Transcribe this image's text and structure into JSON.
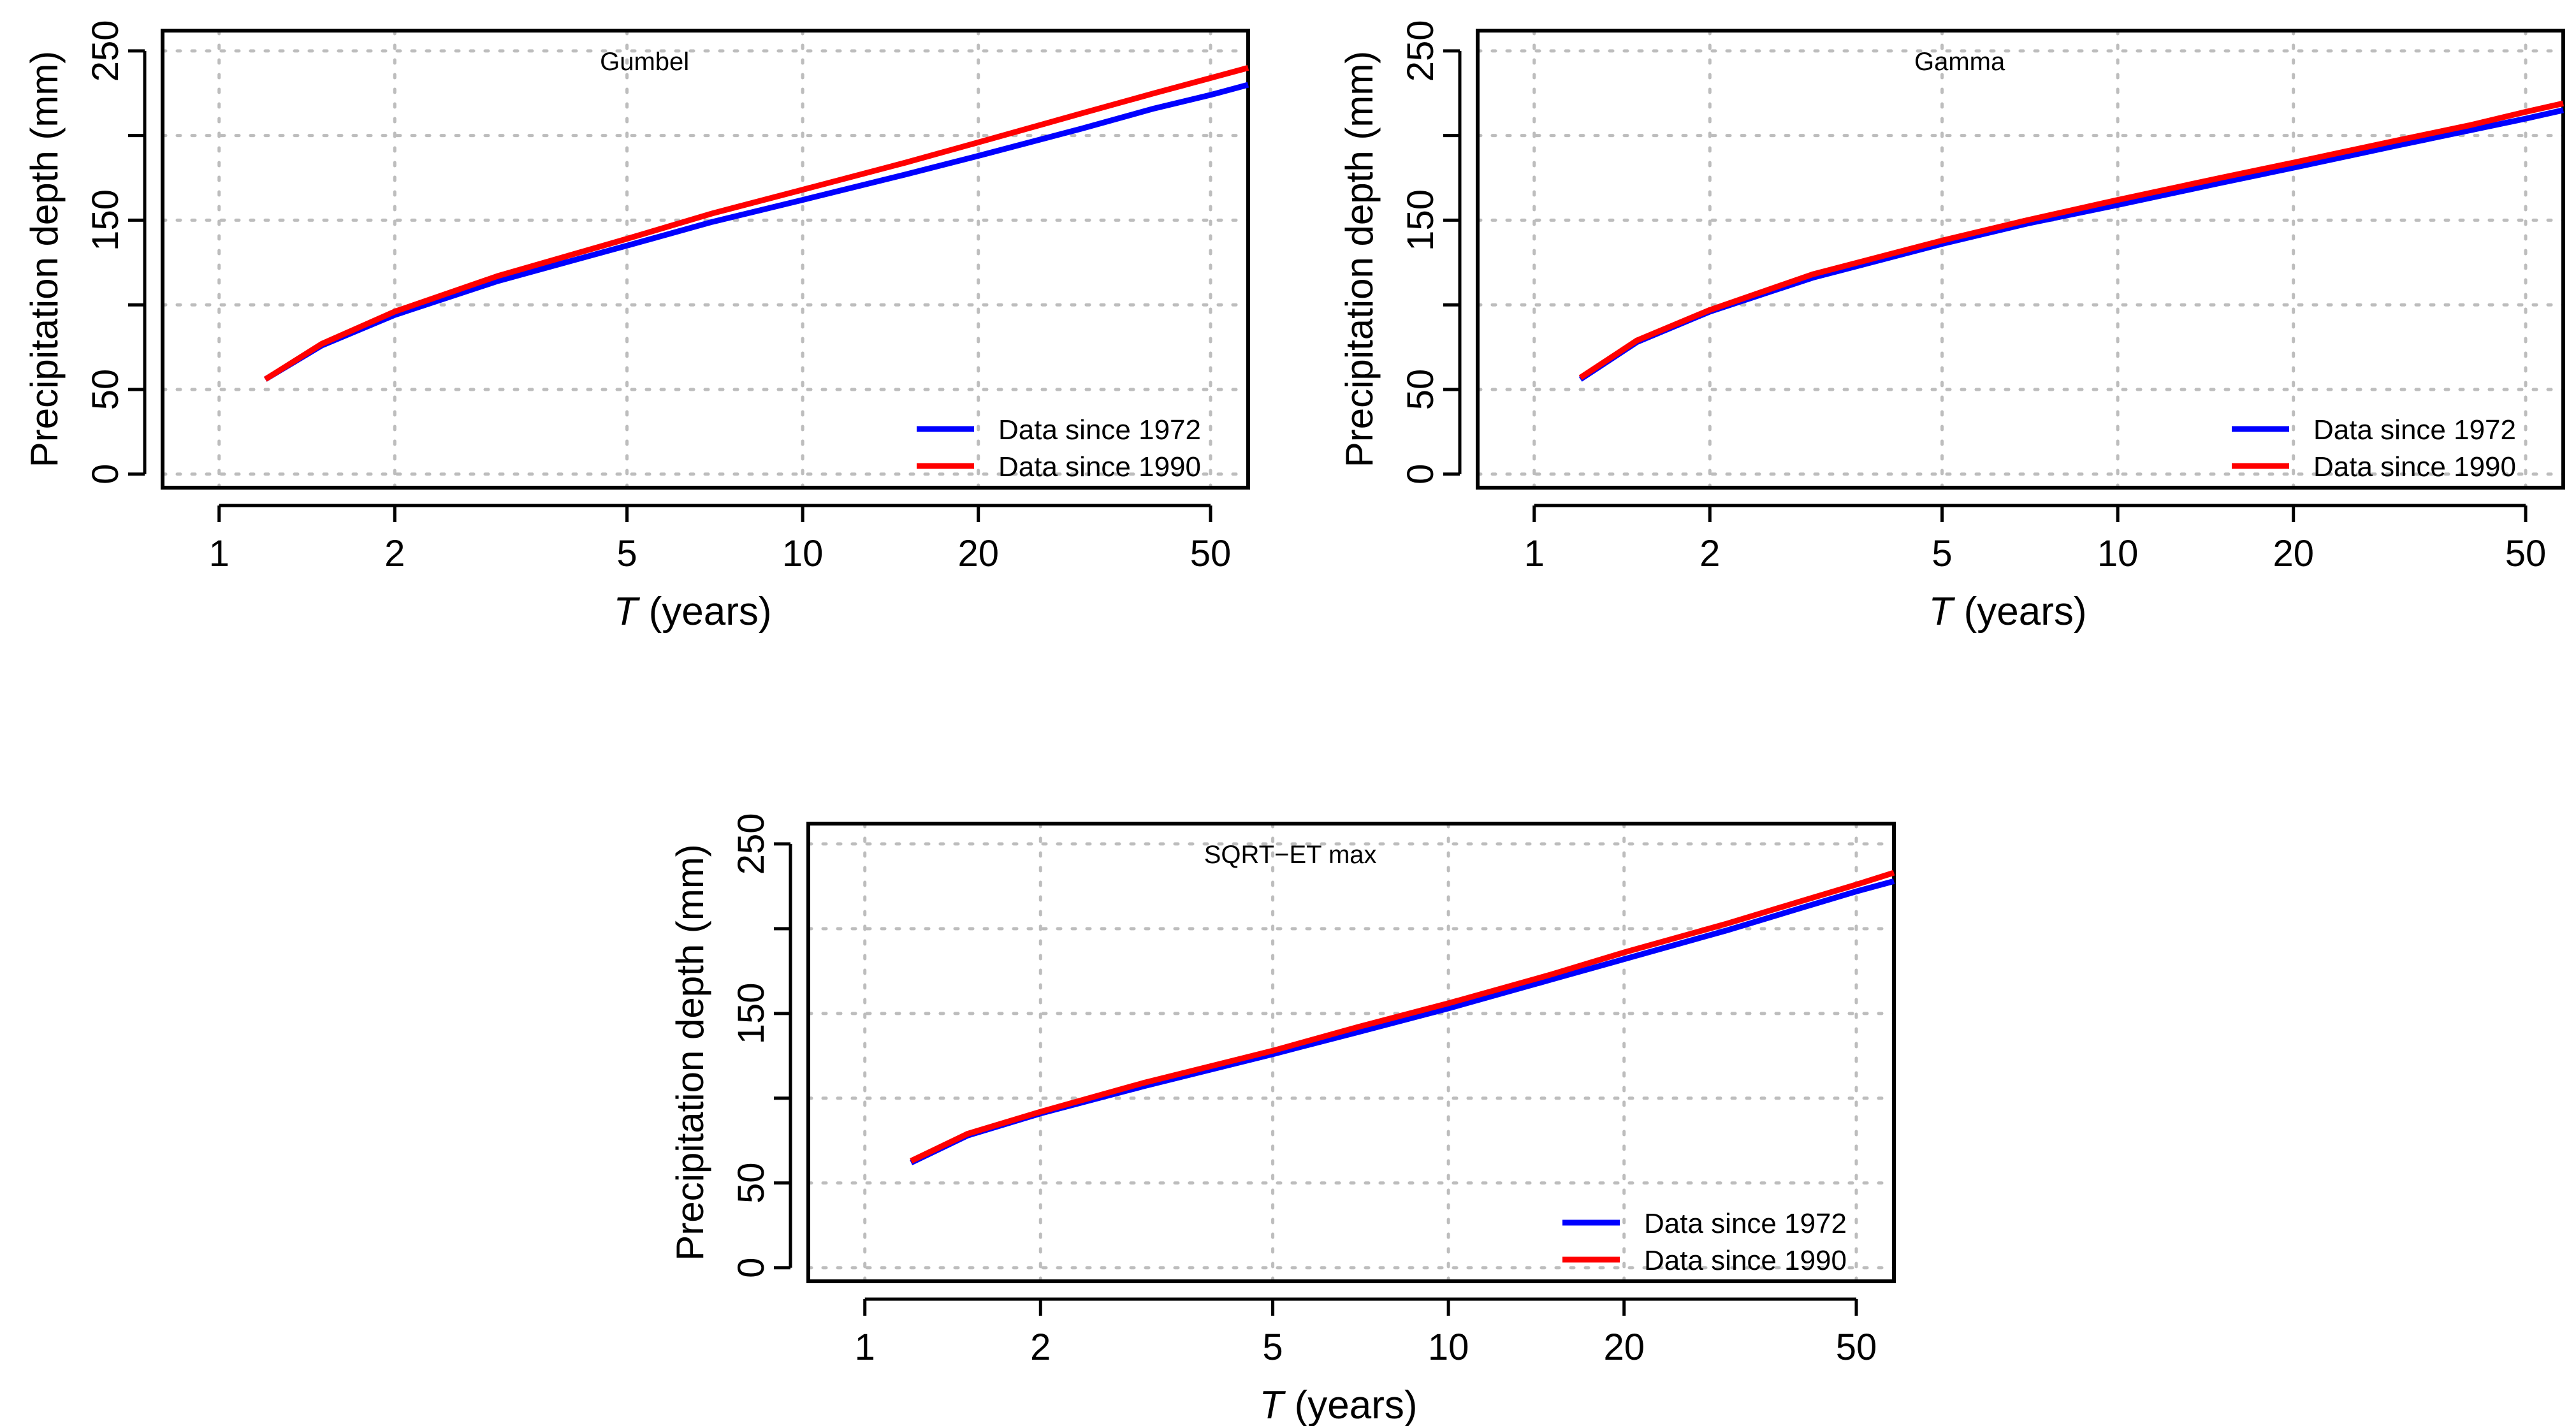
{
  "chart_data": [
    {
      "type": "line",
      "title": "Gumbel",
      "xlabel_italic": "T",
      "xlabel_rest": " (years)",
      "ylabel": "Precipitation depth (mm)",
      "xscale": "log",
      "xlim": [
        0.8,
        58
      ],
      "ylim": [
        -8,
        262
      ],
      "xticks": [
        1,
        2,
        5,
        10,
        20,
        50
      ],
      "yticks": [
        0,
        50,
        150,
        250
      ],
      "grid": true,
      "legend_position": "bottom-right",
      "series": [
        {
          "name": "Data since 1972",
          "color": "#0000ff",
          "x": [
            1.2,
            1.5,
            2,
            3,
            5,
            7,
            10,
            15,
            20,
            30,
            40,
            50,
            58
          ],
          "y": [
            56,
            76,
            94,
            114,
            135,
            149,
            162,
            177,
            188,
            204,
            216,
            224,
            230
          ]
        },
        {
          "name": "Data since 1990",
          "color": "#ff0000",
          "x": [
            1.2,
            1.5,
            2,
            3,
            5,
            7,
            10,
            15,
            20,
            30,
            40,
            50,
            58
          ],
          "y": [
            56,
            77,
            96,
            117,
            139,
            154,
            168,
            184,
            196,
            213,
            225,
            234,
            240
          ]
        }
      ]
    },
    {
      "type": "line",
      "title": "Gamma",
      "xlabel_italic": "T",
      "xlabel_rest": " (years)",
      "ylabel": "Precipitation depth (mm)",
      "xscale": "log",
      "xlim": [
        0.8,
        58
      ],
      "ylim": [
        -8,
        262
      ],
      "xticks": [
        1,
        2,
        5,
        10,
        20,
        50
      ],
      "yticks": [
        0,
        50,
        150,
        250
      ],
      "grid": true,
      "legend_position": "bottom-right",
      "series": [
        {
          "name": "Data since 1972",
          "color": "#0000ff",
          "x": [
            1.2,
            1.5,
            2,
            3,
            5,
            7,
            10,
            15,
            20,
            30,
            40,
            50,
            58
          ],
          "y": [
            56,
            78,
            96,
            116,
            136,
            148,
            159,
            172,
            181,
            194,
            203,
            210,
            215
          ]
        },
        {
          "name": "Data since 1990",
          "color": "#ff0000",
          "x": [
            1.2,
            1.5,
            2,
            3,
            5,
            7,
            10,
            15,
            20,
            30,
            40,
            50,
            58
          ],
          "y": [
            57,
            79,
            97,
            118,
            138,
            150,
            162,
            175,
            184,
            197,
            206,
            214,
            219
          ]
        }
      ]
    },
    {
      "type": "line",
      "title": "SQRT−ET max",
      "xlabel_italic": "T",
      "xlabel_rest": " (years)",
      "ylabel": "Precipitation depth (mm)",
      "xscale": "log",
      "xlim": [
        0.8,
        58
      ],
      "ylim": [
        -8,
        262
      ],
      "xticks": [
        1,
        2,
        5,
        10,
        20,
        50
      ],
      "yticks": [
        0,
        50,
        150,
        250
      ],
      "grid": true,
      "legend_position": "bottom-right",
      "series": [
        {
          "name": "Data since 1972",
          "color": "#0000ff",
          "x": [
            1.2,
            1.5,
            2,
            3,
            5,
            7,
            10,
            15,
            20,
            30,
            40,
            50,
            58
          ],
          "y": [
            62,
            78,
            91,
            107,
            126,
            139,
            153,
            170,
            182,
            199,
            212,
            222,
            228
          ]
        },
        {
          "name": "Data since 1990",
          "color": "#ff0000",
          "x": [
            1.2,
            1.5,
            2,
            3,
            5,
            7,
            10,
            15,
            20,
            30,
            40,
            50,
            58
          ],
          "y": [
            63,
            79,
            92,
            109,
            128,
            142,
            156,
            173,
            186,
            203,
            216,
            226,
            233
          ]
        }
      ]
    }
  ]
}
